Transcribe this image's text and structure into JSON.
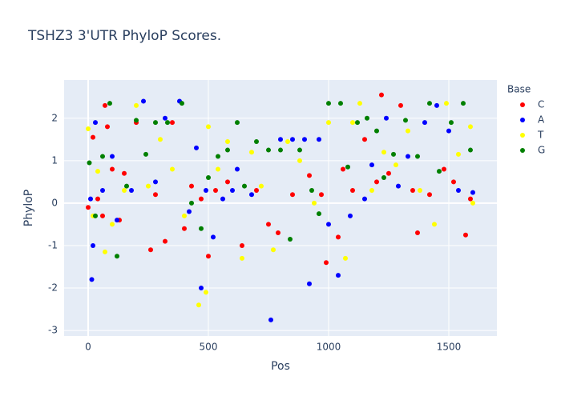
{
  "chart_data": {
    "type": "scatter",
    "title": "TSHZ3 3'UTR PhyloP Scores.",
    "x_label": "Pos",
    "y_label": "PhyloP",
    "legend_title": "Base",
    "grid": true,
    "xlim": [
      -100,
      1700
    ],
    "ylim": [
      -3.13,
      2.9
    ],
    "xticks": [
      0,
      500,
      1000,
      1500
    ],
    "yticks": [
      -3,
      -2,
      -1,
      0,
      1,
      2
    ],
    "series": [
      {
        "name": "C",
        "color": "#ff0000",
        "x": [
          0,
          20,
          40,
          60,
          70,
          80,
          100,
          130,
          150,
          200,
          260,
          280,
          320,
          350,
          400,
          430,
          470,
          500,
          530,
          580,
          640,
          700,
          750,
          790,
          850,
          920,
          970,
          990,
          1040,
          1060,
          1100,
          1150,
          1200,
          1220,
          1250,
          1300,
          1350,
          1370,
          1420,
          1480,
          1520,
          1570,
          1590
        ],
        "values": [
          -0.1,
          1.55,
          0.1,
          -0.3,
          2.3,
          1.8,
          0.8,
          -0.4,
          0.7,
          1.9,
          -1.1,
          0.2,
          -0.9,
          1.9,
          -0.6,
          0.4,
          0.1,
          -1.25,
          0.3,
          0.5,
          -1.0,
          0.3,
          -0.5,
          -0.7,
          0.2,
          0.65,
          0.2,
          -1.4,
          -0.8,
          0.8,
          0.3,
          1.5,
          0.5,
          2.55,
          0.7,
          2.3,
          0.3,
          -0.7,
          0.2,
          0.8,
          0.5,
          -0.75,
          0.1
        ]
      },
      {
        "name": "A",
        "color": "#0000ff",
        "x": [
          10,
          15,
          20,
          30,
          60,
          100,
          120,
          180,
          230,
          280,
          320,
          380,
          420,
          450,
          470,
          490,
          520,
          560,
          600,
          620,
          680,
          760,
          800,
          850,
          900,
          920,
          960,
          1000,
          1040,
          1090,
          1150,
          1180,
          1240,
          1290,
          1330,
          1400,
          1450,
          1500,
          1540,
          1600
        ],
        "values": [
          0.1,
          -1.8,
          -1.0,
          1.9,
          0.3,
          1.1,
          -0.4,
          0.3,
          2.4,
          0.5,
          2.0,
          2.4,
          -0.2,
          1.3,
          -2.0,
          0.3,
          -0.8,
          0.1,
          0.3,
          0.8,
          0.2,
          -2.75,
          1.5,
          1.5,
          1.5,
          -1.9,
          1.5,
          -0.5,
          -1.7,
          -0.3,
          0.1,
          0.9,
          2.0,
          0.4,
          1.1,
          1.9,
          2.3,
          1.7,
          0.3,
          0.25
        ]
      },
      {
        "name": "T",
        "color": "#ffff00",
        "x": [
          0,
          20,
          40,
          70,
          100,
          150,
          200,
          250,
          300,
          350,
          400,
          460,
          490,
          500,
          540,
          580,
          640,
          680,
          720,
          770,
          830,
          880,
          940,
          1000,
          1070,
          1100,
          1130,
          1180,
          1230,
          1280,
          1330,
          1380,
          1440,
          1490,
          1540,
          1590,
          1600
        ],
        "values": [
          1.75,
          -0.3,
          0.75,
          -1.15,
          -0.5,
          0.3,
          2.3,
          0.4,
          1.5,
          0.8,
          -0.3,
          -2.4,
          -2.1,
          1.8,
          0.8,
          1.45,
          -1.3,
          1.2,
          0.4,
          -1.1,
          1.45,
          1.0,
          0.0,
          1.9,
          -1.3,
          1.9,
          2.35,
          0.3,
          1.2,
          0.9,
          1.7,
          0.3,
          -0.5,
          2.35,
          1.15,
          1.8,
          0.0
        ]
      },
      {
        "name": "G",
        "color": "#008000",
        "x": [
          5,
          30,
          60,
          90,
          120,
          160,
          200,
          240,
          280,
          330,
          390,
          430,
          470,
          500,
          540,
          580,
          620,
          650,
          700,
          750,
          800,
          840,
          880,
          930,
          960,
          1000,
          1050,
          1080,
          1120,
          1160,
          1200,
          1230,
          1270,
          1320,
          1370,
          1420,
          1460,
          1510,
          1560,
          1590
        ],
        "values": [
          0.95,
          -0.3,
          1.1,
          2.35,
          -1.25,
          0.4,
          1.95,
          1.15,
          1.9,
          1.9,
          2.35,
          0.0,
          -0.6,
          0.6,
          1.1,
          1.25,
          1.9,
          0.4,
          1.45,
          1.25,
          1.25,
          -0.85,
          1.25,
          0.3,
          -0.25,
          2.35,
          2.35,
          0.85,
          1.9,
          2.0,
          1.7,
          0.6,
          1.15,
          1.95,
          1.1,
          2.35,
          0.75,
          1.9,
          2.35,
          1.25
        ]
      }
    ]
  }
}
